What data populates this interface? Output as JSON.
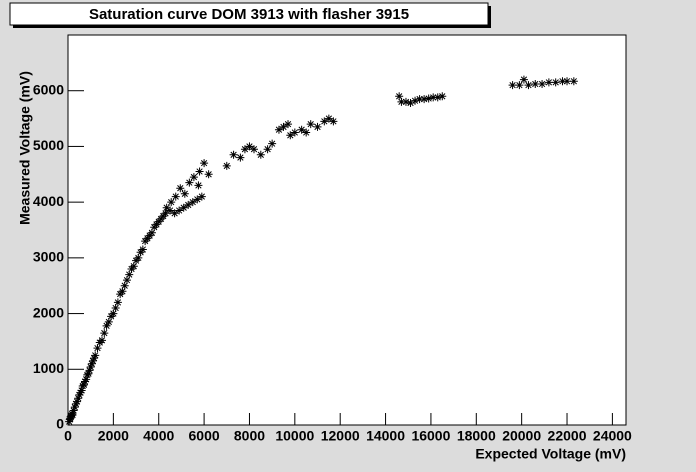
{
  "chart_data": {
    "type": "scatter",
    "title": "Saturation curve DOM 3913 with flasher 3915",
    "x_label": "Expected Voltage (mV)",
    "y_label": "Measured Voltage (mV)",
    "color": "#000000",
    "xlim": [
      0,
      24600
    ],
    "ylim": [
      0,
      7000
    ],
    "xticks": [
      0,
      2000,
      4000,
      6000,
      8000,
      10000,
      12000,
      14000,
      16000,
      18000,
      20000,
      22000,
      24000
    ],
    "yticks": [
      0,
      1000,
      2000,
      3000,
      4000,
      5000,
      6000
    ],
    "x": [
      50,
      80,
      100,
      120,
      150,
      180,
      200,
      250,
      300,
      350,
      400,
      450,
      500,
      550,
      600,
      650,
      700,
      750,
      800,
      850,
      900,
      950,
      1000,
      1050,
      1100,
      1150,
      1200,
      1300,
      1400,
      1500,
      1600,
      1700,
      1800,
      1900,
      2000,
      2100,
      2200,
      2300,
      2400,
      2500,
      2600,
      2700,
      2800,
      2900,
      3000,
      3100,
      3200,
      3300,
      3400,
      3500,
      3600,
      3700,
      3800,
      3900,
      4000,
      4100,
      4200,
      4300,
      4500,
      4700,
      4900,
      5100,
      5300,
      5500,
      5700,
      5900,
      4350,
      4550,
      4750,
      4950,
      5150,
      5350,
      5550,
      5750,
      5800,
      6000,
      6200,
      7000,
      7300,
      7600,
      7800,
      8000,
      8200,
      8500,
      8800,
      9000,
      9300,
      9500,
      9700,
      9800,
      10000,
      10300,
      10500,
      10700,
      11000,
      11300,
      11500,
      11700,
      14600,
      14700,
      14900,
      15100,
      15300,
      15500,
      15700,
      15900,
      16100,
      16300,
      16500,
      19600,
      19900,
      20100,
      20300,
      20600,
      20900,
      21200,
      21500,
      21800,
      22000,
      22300
    ],
    "y": [
      60,
      100,
      120,
      150,
      170,
      200,
      180,
      260,
      320,
      380,
      420,
      480,
      540,
      580,
      620,
      700,
      720,
      780,
      820,
      900,
      920,
      980,
      1040,
      1100,
      1150,
      1200,
      1250,
      1380,
      1480,
      1520,
      1650,
      1780,
      1850,
      1950,
      2000,
      2100,
      2200,
      2350,
      2400,
      2500,
      2600,
      2700,
      2800,
      2850,
      2950,
      3000,
      3100,
      3150,
      3300,
      3350,
      3400,
      3450,
      3550,
      3600,
      3650,
      3700,
      3750,
      3800,
      3850,
      3800,
      3850,
      3900,
      3950,
      4000,
      4050,
      4100,
      3900,
      4000,
      4100,
      4250,
      4150,
      4350,
      4450,
      4300,
      4550,
      4700,
      4500,
      4650,
      4850,
      4800,
      4950,
      5000,
      4950,
      4850,
      4950,
      5050,
      5300,
      5350,
      5400,
      5200,
      5250,
      5300,
      5250,
      5400,
      5350,
      5450,
      5500,
      5450,
      5900,
      5800,
      5800,
      5780,
      5820,
      5850,
      5850,
      5860,
      5880,
      5880,
      5900,
      6100,
      6100,
      6200,
      6100,
      6120,
      6120,
      6150,
      6150,
      6170,
      6170,
      6170
    ]
  }
}
